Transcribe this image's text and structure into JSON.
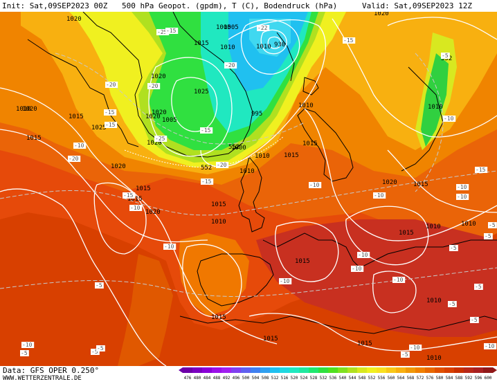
{
  "header": {
    "init": "Init: Sat,09SEP2023 00Z",
    "title": "500 hPa Geopot. (gpdm), T (C), Bodendruck (hPa)",
    "valid": "Valid: Sat,09SEP2023 12Z"
  },
  "footer": {
    "source": "Data: GFS OPER 0.250°",
    "website": "WWW.WETTERZENTRALE.DE"
  },
  "legend": {
    "values": [
      "476",
      "480",
      "484",
      "488",
      "492",
      "496",
      "500",
      "504",
      "508",
      "512",
      "516",
      "520",
      "524",
      "528",
      "532",
      "536",
      "540",
      "544",
      "548",
      "552",
      "556",
      "560",
      "564",
      "568",
      "572",
      "576",
      "580",
      "584",
      "588",
      "592",
      "596",
      "600"
    ],
    "colors": [
      "#6d00a8",
      "#7a00c0",
      "#8a00d8",
      "#9a10e8",
      "#a020f0",
      "#8040f0",
      "#6060f0",
      "#4080f0",
      "#30a0f0",
      "#20c0f0",
      "#20d8e0",
      "#20e8c0",
      "#20e8a0",
      "#20e870",
      "#30e040",
      "#50e020",
      "#80e020",
      "#b0e020",
      "#d8e820",
      "#f0f020",
      "#f8e020",
      "#f8c818",
      "#f8b010",
      "#f09808",
      "#f08000",
      "#e86800",
      "#e05000",
      "#d84000",
      "#c83000",
      "#b82818",
      "#a82020",
      "#901818"
    ]
  },
  "map": {
    "isobar_labels": [
      "1020",
      "1005",
      "1020",
      "1015",
      "1010",
      "1020",
      "1025",
      "1010",
      "1005",
      "1020",
      "995",
      "1020",
      "1010",
      "1015",
      "1025",
      "1000",
      "1020",
      "1005",
      "1010",
      "1020",
      "1015",
      "1015",
      "1015",
      "1010",
      "1015",
      "1020",
      "1010",
      "1015",
      "1020",
      "1010",
      "1015",
      "1015",
      "1010",
      "1015",
      "1010",
      "1015",
      "1015",
      "1015",
      "1010",
      "1010",
      "1020",
      "1015",
      "1010"
    ],
    "height_labels": [
      "552",
      "552",
      "552"
    ],
    "temp_labels": [
      "-25",
      "-22",
      "-20",
      "-15",
      "-20",
      "-15",
      "-20",
      "-10",
      "-15",
      "-25",
      "-20",
      "-15",
      "-20",
      "-10",
      "-15",
      "-10",
      "-10",
      "-10",
      "-5",
      "-10",
      "-10",
      "-5",
      "-5",
      "-5",
      "-5",
      "-10",
      "-5",
      "-10",
      "-15",
      "-10",
      "-10",
      "-5",
      "-5",
      "-5",
      "-10",
      "-10",
      "-15",
      "-15",
      "-5",
      "-5",
      "-10",
      "-10",
      "-5"
    ],
    "low_values": [
      "930"
    ],
    "colors": {
      "isobar": "#ffffff",
      "coast": "#000000",
      "temp": "#c8c8c8"
    }
  }
}
